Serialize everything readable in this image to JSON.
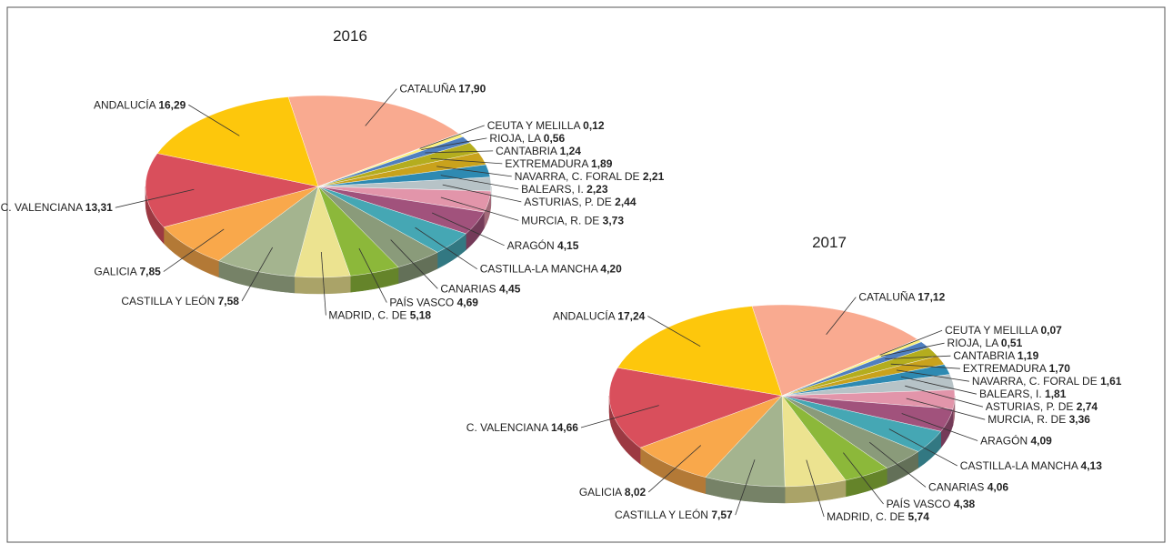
{
  "chart_data": [
    {
      "type": "pie",
      "title": "2016",
      "categories": [
        "CATALUÑA",
        "CEUTA Y MELILLA",
        "RIOJA, LA",
        "CANTABRIA",
        "EXTREMADURA",
        "NAVARRA, C. FORAL DE",
        "BALEARS, I.",
        "ASTURIAS, P. DE",
        "MURCIA, R. DE",
        "ARAGÓN",
        "CASTILLA-LA MANCHA",
        "CANARIAS",
        "PAÍS VASCO",
        "MADRID, C. DE",
        "CASTILLA Y LEÓN",
        "GALICIA",
        "C. VALENCIANA",
        "ANDALUCÍA"
      ],
      "values": [
        17.9,
        0.12,
        0.56,
        1.24,
        1.89,
        2.21,
        2.23,
        2.44,
        3.73,
        4.15,
        4.2,
        4.45,
        4.69,
        5.18,
        7.58,
        7.85,
        13.31,
        16.29
      ],
      "value_labels": [
        "17,90",
        "0,12",
        "0,56",
        "1,24",
        "1,89",
        "2,21",
        "2,23",
        "2,44",
        "3,73",
        "4,15",
        "4,20",
        "4,45",
        "4,69",
        "5,18",
        "7,58",
        "7,85",
        "13,31",
        "16,29"
      ],
      "colors": [
        "#f9aa90",
        "#dcdcf0",
        "#fbf07c",
        "#4f7fbf",
        "#b4ad1e",
        "#c9a21c",
        "#2e8ab2",
        "#b7c3c7",
        "#e295aa",
        "#a1527c",
        "#45a7b4",
        "#8a9b7a",
        "#8cb83a",
        "#ece390",
        "#a4b48f",
        "#f9a84b",
        "#d94f5c",
        "#fdc70c"
      ]
    },
    {
      "type": "pie",
      "title": "2017",
      "categories": [
        "CATALUÑA",
        "CEUTA Y MELILLA",
        "RIOJA, LA",
        "CANTABRIA",
        "EXTREMADURA",
        "NAVARRA, C. FORAL DE",
        "BALEARS, I.",
        "ASTURIAS, P. DE",
        "MURCIA, R. DE",
        "ARAGÓN",
        "CASTILLA-LA MANCHA",
        "CANARIAS",
        "PAÍS VASCO",
        "MADRID, C. DE",
        "CASTILLA Y LEÓN",
        "GALICIA",
        "C. VALENCIANA",
        "ANDALUCÍA"
      ],
      "values": [
        17.12,
        0.07,
        0.51,
        1.19,
        1.7,
        1.61,
        1.81,
        2.74,
        3.36,
        4.09,
        4.13,
        4.06,
        4.38,
        5.74,
        7.57,
        8.02,
        14.66,
        17.24
      ],
      "value_labels": [
        "17,12",
        "0,07",
        "0,51",
        "1,19",
        "1,70",
        "1,61",
        "1,81",
        "2,74",
        "3,36",
        "4,09",
        "4,13",
        "4,06",
        "4,38",
        "5,74",
        "7,57",
        "8,02",
        "14,66",
        "17,24"
      ],
      "colors": [
        "#f9aa90",
        "#dcdcf0",
        "#fbf07c",
        "#4f7fbf",
        "#b4ad1e",
        "#c9a21c",
        "#2e8ab2",
        "#b7c3c7",
        "#e295aa",
        "#a1527c",
        "#45a7b4",
        "#8a9b7a",
        "#8cb83a",
        "#ece390",
        "#a4b48f",
        "#f9a84b",
        "#d94f5c",
        "#fdc70c"
      ]
    }
  ]
}
